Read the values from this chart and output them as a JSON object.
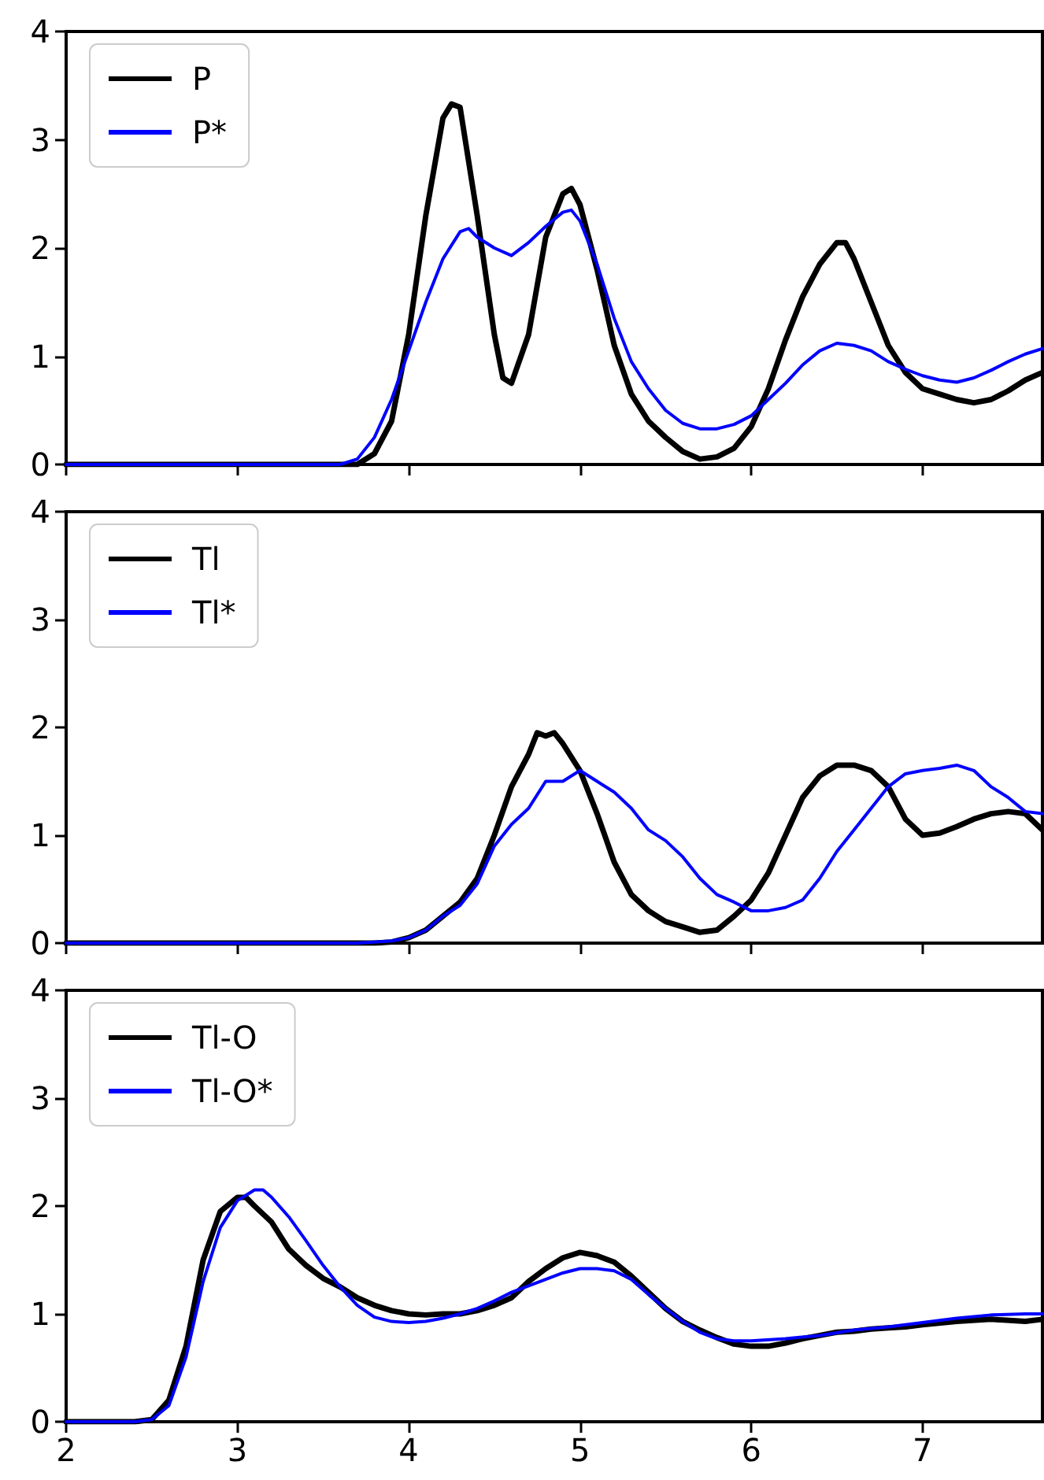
{
  "chart_data": [
    {
      "type": "line",
      "xlim": [
        2,
        7.7
      ],
      "xticks": [
        2,
        3,
        4,
        5,
        6,
        7
      ],
      "ylim": [
        0,
        4
      ],
      "yticks": [
        0,
        1,
        2,
        3,
        4
      ],
      "tick_labels": "y",
      "legend": "top left",
      "series": [
        {
          "name": "P",
          "color": "#000000",
          "x": [
            2,
            3.7,
            3.8,
            3.9,
            4.0,
            4.1,
            4.2,
            4.25,
            4.3,
            4.4,
            4.5,
            4.55,
            4.6,
            4.7,
            4.8,
            4.9,
            4.95,
            5.0,
            5.1,
            5.2,
            5.3,
            5.4,
            5.5,
            5.6,
            5.7,
            5.8,
            5.9,
            6.0,
            6.1,
            6.2,
            6.3,
            6.4,
            6.5,
            6.55,
            6.6,
            6.7,
            6.8,
            6.9,
            7.0,
            7.1,
            7.2,
            7.3,
            7.4,
            7.5,
            7.6,
            7.7
          ],
          "values": [
            0,
            0,
            0.1,
            0.4,
            1.2,
            2.3,
            3.2,
            3.33,
            3.3,
            2.3,
            1.2,
            0.8,
            0.75,
            1.2,
            2.1,
            2.5,
            2.55,
            2.4,
            1.8,
            1.1,
            0.65,
            0.4,
            0.25,
            0.12,
            0.05,
            0.07,
            0.15,
            0.35,
            0.7,
            1.15,
            1.55,
            1.85,
            2.05,
            2.05,
            1.9,
            1.5,
            1.1,
            0.85,
            0.7,
            0.65,
            0.6,
            0.57,
            0.6,
            0.68,
            0.78,
            0.85
          ]
        },
        {
          "name": "P*",
          "color": "#0000ff",
          "x": [
            2,
            3.6,
            3.7,
            3.8,
            3.9,
            4.0,
            4.1,
            4.2,
            4.3,
            4.35,
            4.4,
            4.5,
            4.6,
            4.7,
            4.8,
            4.9,
            4.95,
            5.0,
            5.1,
            5.2,
            5.3,
            5.4,
            5.5,
            5.6,
            5.7,
            5.8,
            5.9,
            6.0,
            6.1,
            6.2,
            6.3,
            6.4,
            6.5,
            6.6,
            6.7,
            6.8,
            6.9,
            7.0,
            7.1,
            7.2,
            7.3,
            7.4,
            7.5,
            7.6,
            7.7
          ],
          "values": [
            0,
            0,
            0.05,
            0.25,
            0.6,
            1.05,
            1.5,
            1.9,
            2.15,
            2.18,
            2.1,
            2.0,
            1.93,
            2.05,
            2.2,
            2.33,
            2.35,
            2.25,
            1.85,
            1.35,
            0.95,
            0.7,
            0.5,
            0.38,
            0.33,
            0.33,
            0.37,
            0.45,
            0.6,
            0.75,
            0.92,
            1.05,
            1.12,
            1.1,
            1.05,
            0.95,
            0.88,
            0.82,
            0.78,
            0.76,
            0.8,
            0.87,
            0.95,
            1.02,
            1.07
          ]
        }
      ]
    },
    {
      "type": "line",
      "xlim": [
        2,
        7.7
      ],
      "xticks": [
        2,
        3,
        4,
        5,
        6,
        7
      ],
      "ylim": [
        0,
        4
      ],
      "yticks": [
        0,
        1,
        2,
        3,
        4
      ],
      "tick_labels": "y",
      "legend": "top left",
      "series": [
        {
          "name": "Tl",
          "color": "#000000",
          "x": [
            2,
            3.8,
            3.9,
            4.0,
            4.1,
            4.2,
            4.3,
            4.4,
            4.5,
            4.6,
            4.7,
            4.75,
            4.8,
            4.85,
            4.9,
            5.0,
            5.1,
            5.2,
            5.3,
            5.4,
            5.5,
            5.6,
            5.7,
            5.8,
            5.9,
            6.0,
            6.1,
            6.2,
            6.3,
            6.4,
            6.5,
            6.6,
            6.7,
            6.8,
            6.9,
            7.0,
            7.1,
            7.2,
            7.3,
            7.4,
            7.5,
            7.6,
            7.7
          ],
          "values": [
            0,
            0,
            0.01,
            0.05,
            0.12,
            0.25,
            0.38,
            0.6,
            1.0,
            1.45,
            1.75,
            1.95,
            1.92,
            1.95,
            1.85,
            1.6,
            1.2,
            0.75,
            0.45,
            0.3,
            0.2,
            0.15,
            0.1,
            0.12,
            0.25,
            0.4,
            0.65,
            1.0,
            1.35,
            1.55,
            1.65,
            1.65,
            1.6,
            1.45,
            1.15,
            1.0,
            1.02,
            1.08,
            1.15,
            1.2,
            1.22,
            1.2,
            1.05
          ]
        },
        {
          "name": "Tl*",
          "color": "#0000ff",
          "x": [
            2,
            3.7,
            3.9,
            4.0,
            4.1,
            4.2,
            4.3,
            4.4,
            4.5,
            4.6,
            4.7,
            4.8,
            4.9,
            5.0,
            5.1,
            5.2,
            5.3,
            5.4,
            5.5,
            5.6,
            5.7,
            5.8,
            5.9,
            6.0,
            6.1,
            6.2,
            6.3,
            6.4,
            6.5,
            6.6,
            6.7,
            6.8,
            6.9,
            7.0,
            7.1,
            7.2,
            7.3,
            7.4,
            7.5,
            7.6,
            7.7
          ],
          "values": [
            0,
            0,
            0.02,
            0.05,
            0.12,
            0.25,
            0.35,
            0.55,
            0.9,
            1.1,
            1.25,
            1.5,
            1.5,
            1.6,
            1.5,
            1.4,
            1.25,
            1.05,
            0.95,
            0.8,
            0.6,
            0.45,
            0.38,
            0.3,
            0.3,
            0.33,
            0.4,
            0.6,
            0.85,
            1.05,
            1.25,
            1.45,
            1.57,
            1.6,
            1.62,
            1.65,
            1.6,
            1.45,
            1.35,
            1.22,
            1.2
          ]
        }
      ]
    },
    {
      "type": "line",
      "xlim": [
        2,
        7.7
      ],
      "xticks": [
        2,
        3,
        4,
        5,
        6,
        7
      ],
      "ylim": [
        0,
        4
      ],
      "yticks": [
        0,
        1,
        2,
        3,
        4
      ],
      "legend": "top left",
      "series": [
        {
          "name": "Tl-O",
          "color": "#000000",
          "x": [
            2,
            2.4,
            2.5,
            2.6,
            2.7,
            2.8,
            2.9,
            3.0,
            3.05,
            3.1,
            3.2,
            3.3,
            3.4,
            3.5,
            3.6,
            3.7,
            3.8,
            3.9,
            4.0,
            4.1,
            4.2,
            4.3,
            4.4,
            4.5,
            4.6,
            4.7,
            4.8,
            4.9,
            5.0,
            5.1,
            5.2,
            5.3,
            5.4,
            5.5,
            5.6,
            5.7,
            5.8,
            5.9,
            6.0,
            6.1,
            6.2,
            6.3,
            6.4,
            6.5,
            6.6,
            6.7,
            6.8,
            6.9,
            7.0,
            7.2,
            7.4,
            7.6,
            7.7
          ],
          "values": [
            0,
            0,
            0.02,
            0.2,
            0.7,
            1.5,
            1.95,
            2.08,
            2.08,
            2.0,
            1.85,
            1.6,
            1.45,
            1.33,
            1.25,
            1.15,
            1.08,
            1.03,
            1.0,
            0.99,
            1.0,
            1.0,
            1.03,
            1.08,
            1.15,
            1.3,
            1.42,
            1.52,
            1.57,
            1.54,
            1.48,
            1.35,
            1.2,
            1.05,
            0.93,
            0.85,
            0.78,
            0.72,
            0.7,
            0.7,
            0.73,
            0.77,
            0.8,
            0.83,
            0.84,
            0.86,
            0.87,
            0.88,
            0.9,
            0.93,
            0.95,
            0.93,
            0.95
          ]
        },
        {
          "name": "Tl-O*",
          "color": "#0000ff",
          "x": [
            2,
            2.4,
            2.5,
            2.6,
            2.7,
            2.8,
            2.9,
            3.0,
            3.1,
            3.15,
            3.2,
            3.3,
            3.4,
            3.5,
            3.6,
            3.7,
            3.8,
            3.9,
            4.0,
            4.1,
            4.2,
            4.3,
            4.4,
            4.5,
            4.6,
            4.7,
            4.8,
            4.9,
            5.0,
            5.1,
            5.2,
            5.3,
            5.4,
            5.5,
            5.6,
            5.7,
            5.8,
            5.9,
            6.0,
            6.2,
            6.4,
            6.6,
            6.8,
            7.0,
            7.2,
            7.4,
            7.6,
            7.7
          ],
          "values": [
            0,
            0,
            0.02,
            0.15,
            0.6,
            1.3,
            1.8,
            2.05,
            2.15,
            2.15,
            2.08,
            1.9,
            1.68,
            1.45,
            1.25,
            1.08,
            0.97,
            0.93,
            0.92,
            0.93,
            0.96,
            1.0,
            1.05,
            1.12,
            1.2,
            1.26,
            1.32,
            1.38,
            1.42,
            1.42,
            1.4,
            1.32,
            1.18,
            1.05,
            0.93,
            0.83,
            0.77,
            0.75,
            0.75,
            0.77,
            0.8,
            0.85,
            0.88,
            0.92,
            0.96,
            0.99,
            1.0,
            1.0
          ]
        }
      ]
    }
  ]
}
